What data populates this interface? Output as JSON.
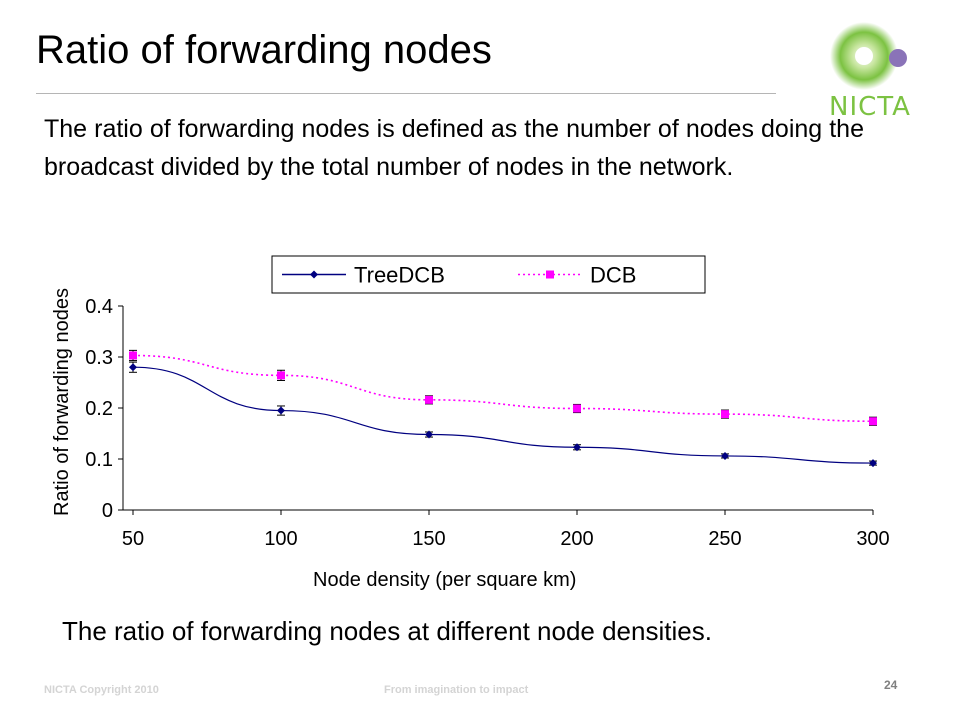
{
  "slide": {
    "title": "Ratio of forwarding nodes",
    "body": "The ratio of forwarding nodes is defined as the number of nodes doing the broadcast divided by the total number of nodes in the network.",
    "caption": "The ratio of forwarding nodes at different node densities.",
    "logo_text": "NICTA",
    "footer_left": "NICTA Copyright 2010",
    "footer_center": "From imagination to impact",
    "page_number": "24"
  },
  "colors": {
    "logo_green": "#7cc242",
    "logo_purple": "#8a73b8",
    "series_treedcb": "#000080",
    "series_dcb": "#ff00ff"
  },
  "chart_data": {
    "type": "line",
    "xlabel": "Node density (per square km)",
    "ylabel": "Ratio of forwarding nodes",
    "x": [
      50,
      100,
      150,
      200,
      250,
      300
    ],
    "x_tick_labels": [
      "50",
      "100",
      "150",
      "200",
      "250",
      "300"
    ],
    "y_tick_labels": [
      "0",
      "0.1",
      "0.2",
      "0.3",
      "0.4"
    ],
    "xlim": [
      50,
      300
    ],
    "ylim": [
      0,
      0.4
    ],
    "legend_position": "top",
    "grid": false,
    "series": [
      {
        "name": "TreeDCB",
        "values": [
          0.28,
          0.195,
          0.148,
          0.123,
          0.106,
          0.092
        ],
        "error": [
          0.01,
          0.009,
          0.005,
          0.005,
          0.004,
          0.004
        ],
        "line_style": "solid",
        "marker": "diamond",
        "color": "#000080"
      },
      {
        "name": "DCB",
        "values": [
          0.303,
          0.264,
          0.216,
          0.199,
          0.188,
          0.174
        ],
        "error": [
          0.01,
          0.01,
          0.008,
          0.008,
          0.008,
          0.008
        ],
        "line_style": "dotted",
        "marker": "square",
        "color": "#ff00ff"
      }
    ]
  }
}
